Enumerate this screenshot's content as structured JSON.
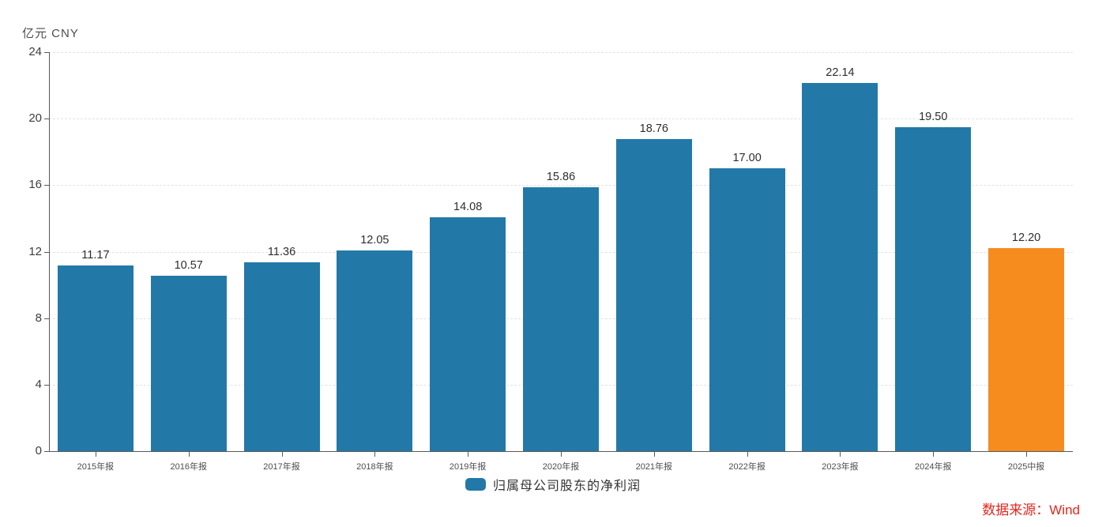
{
  "chart": {
    "unit_label": "亿元 CNY",
    "source_text": "数据来源：Wind"
  },
  "chart_data": {
    "type": "bar",
    "title": "",
    "xlabel": "",
    "ylabel": "亿元 CNY",
    "categories": [
      "2015年报",
      "2016年报",
      "2017年报",
      "2018年报",
      "2019年报",
      "2020年报",
      "2021年报",
      "2022年报",
      "2023年报",
      "2024年报",
      "2025中报"
    ],
    "series": [
      {
        "name": "归属母公司股东的净利润",
        "values": [
          11.17,
          10.57,
          11.36,
          12.05,
          14.08,
          15.86,
          18.76,
          17.0,
          22.14,
          19.5,
          12.2
        ],
        "value_labels": [
          "11.17",
          "10.57",
          "11.36",
          "12.05",
          "14.08",
          "15.86",
          "18.76",
          "17.00",
          "22.14",
          "19.50",
          "12.20"
        ]
      }
    ],
    "ylim": [
      0,
      24
    ],
    "yticks": [
      0,
      4,
      8,
      12,
      16,
      20,
      24
    ],
    "grid": "horizontal-dashed",
    "legend_position": "bottom-center",
    "colors": {
      "bar_default": "#2279a8",
      "bar_highlight": "#f68b1e",
      "highlight_index": 10,
      "source_text": "#e5261f"
    }
  }
}
